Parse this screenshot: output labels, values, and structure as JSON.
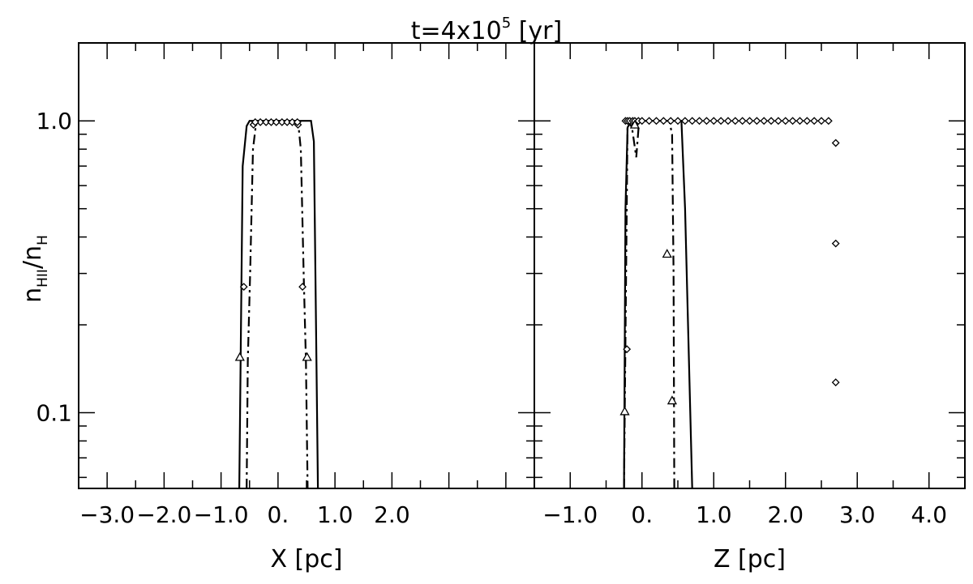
{
  "figure": {
    "title_prefix": "t=4x10",
    "title_exp": "5",
    "title_suffix": " [yr]",
    "ylabel_main": "n",
    "ylabel_sub1": "HII",
    "ylabel_sep": "/n",
    "ylabel_sub2": "H"
  },
  "chart_data": [
    {
      "type": "line",
      "panel": "left",
      "xlabel": "X [pc]",
      "yscale": "log",
      "xlim": [
        -3.5,
        4.5
      ],
      "ylim": [
        0.055,
        1.85
      ],
      "xticks": [
        {
          "value": -3.0,
          "label": "−3.0"
        },
        {
          "value": -2.0,
          "label": "−2.0"
        },
        {
          "value": -1.0,
          "label": "−1.0"
        },
        {
          "value": 0.0,
          "label": "0."
        },
        {
          "value": 1.0,
          "label": "1.0"
        },
        {
          "value": 2.0,
          "label": "2.0"
        }
      ],
      "yticks": [
        {
          "value": 0.1,
          "label": "0.1"
        },
        {
          "value": 1.0,
          "label": "1.0"
        }
      ],
      "series": [
        {
          "style": "solid",
          "x": [
            -0.68,
            -0.62,
            -0.55,
            -0.5,
            0.0,
            0.58,
            0.63,
            0.7
          ],
          "y": [
            0.055,
            0.7,
            0.96,
            1.0,
            1.0,
            1.0,
            0.85,
            0.055
          ]
        },
        {
          "style": "dashdot",
          "x": [
            -0.55,
            -0.53,
            -0.49,
            -0.44,
            -0.38,
            0.0,
            0.35,
            0.4,
            0.45,
            0.49,
            0.52
          ],
          "y": [
            0.055,
            0.15,
            0.3,
            0.8,
            1.0,
            1.0,
            1.0,
            0.8,
            0.3,
            0.15,
            0.055
          ]
        },
        {
          "style": "diamond-markers",
          "x": [
            -0.43,
            -0.31,
            -0.21,
            -0.12,
            -0.03,
            0.07,
            0.16,
            0.25,
            0.35,
            -0.4,
            0.34,
            -0.6,
            0.43
          ],
          "y": [
            0.97,
            0.99,
            0.99,
            0.99,
            0.99,
            0.99,
            0.99,
            0.99,
            0.97,
            0.99,
            0.99,
            0.27,
            0.27
          ]
        },
        {
          "style": "triangle-markers",
          "x": [
            -0.67,
            0.51
          ],
          "y": [
            0.155,
            0.155
          ]
        }
      ]
    },
    {
      "type": "line",
      "panel": "right",
      "xlabel": "Z [pc]",
      "yscale": "log",
      "xlim": [
        -1.5,
        4.5
      ],
      "ylim": [
        0.055,
        1.85
      ],
      "xticks": [
        {
          "value": -1.0,
          "label": "−1.0"
        },
        {
          "value": 0.0,
          "label": "0."
        },
        {
          "value": 1.0,
          "label": "1.0"
        },
        {
          "value": 2.0,
          "label": "2.0"
        },
        {
          "value": 3.0,
          "label": "3.0"
        },
        {
          "value": 4.0,
          "label": "4.0"
        }
      ],
      "yticks": [
        {
          "value": 0.1,
          "label": "0.1"
        },
        {
          "value": 1.0,
          "label": "1.0"
        }
      ],
      "series": [
        {
          "style": "solid",
          "x": [
            -0.25,
            -0.23,
            -0.2,
            -0.15,
            0.0,
            0.55,
            0.6,
            0.7
          ],
          "y": [
            0.055,
            0.5,
            0.95,
            1.0,
            1.0,
            1.0,
            0.5,
            0.055
          ]
        },
        {
          "style": "dashdot",
          "x": [
            -0.25,
            -0.2,
            -0.14,
            -0.08,
            -0.04,
            0.0,
            0.38,
            0.42,
            0.44,
            0.45
          ],
          "y": [
            0.055,
            1.0,
            0.95,
            0.75,
            1.0,
            1.0,
            1.0,
            0.9,
            0.3,
            0.055
          ]
        },
        {
          "style": "diamond-markers",
          "x": [
            -0.23,
            -0.2,
            -0.17,
            -0.13,
            -0.1,
            -0.05,
            0.0,
            0.1,
            0.2,
            0.3,
            0.4,
            0.5,
            0.6,
            0.7,
            0.8,
            0.9,
            1.0,
            1.1,
            1.2,
            1.3,
            1.4,
            1.5,
            1.6,
            1.7,
            1.8,
            1.9,
            2.0,
            2.1,
            2.2,
            2.3,
            2.4,
            2.5,
            2.6,
            -0.1,
            2.7,
            2.7,
            2.7,
            -0.21
          ],
          "y": [
            1.0,
            1.0,
            1.0,
            1.0,
            1.0,
            1.0,
            1.0,
            1.0,
            1.0,
            1.0,
            1.0,
            1.0,
            1.0,
            1.0,
            1.0,
            1.0,
            1.0,
            1.0,
            1.0,
            1.0,
            1.0,
            1.0,
            1.0,
            1.0,
            1.0,
            1.0,
            1.0,
            1.0,
            1.0,
            1.0,
            1.0,
            1.0,
            1.0,
            0.97,
            0.84,
            0.38,
            0.127,
            0.165
          ]
        },
        {
          "style": "triangle-markers",
          "x": [
            -0.24,
            -0.1,
            0.35,
            0.42
          ],
          "y": [
            0.101,
            0.97,
            0.35,
            0.11
          ]
        }
      ]
    }
  ]
}
